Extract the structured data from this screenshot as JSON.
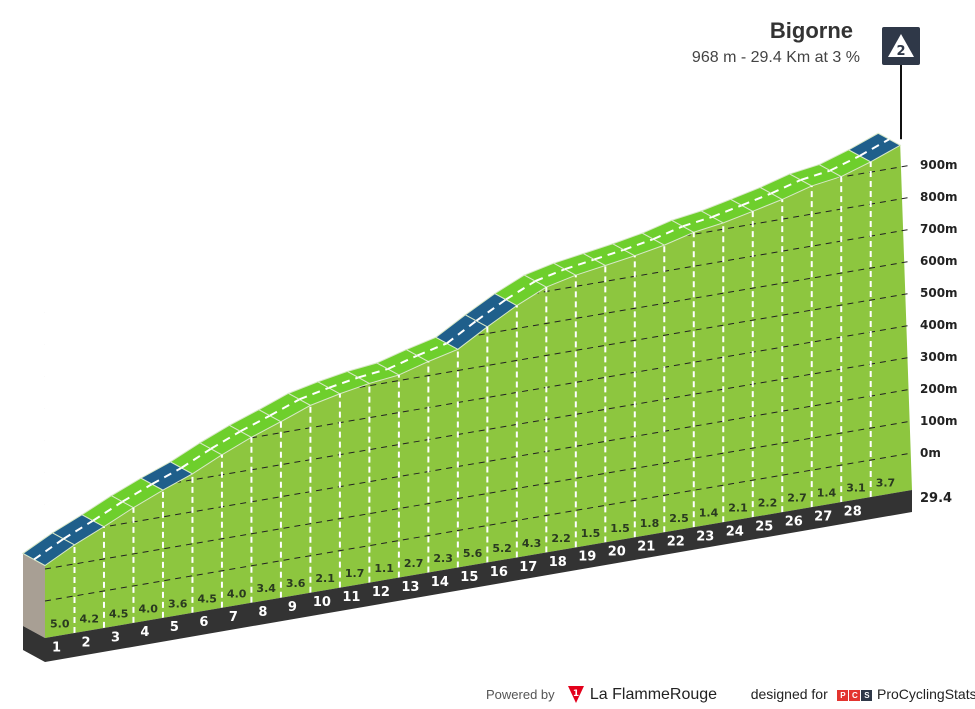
{
  "climb": {
    "name": "Bigorne",
    "summary": "968 m - 29.4 Km at 3 %",
    "category": "2"
  },
  "footer": {
    "powered_by": "Powered by",
    "brand": "La FlammeRouge",
    "brand_mark": "1",
    "designed_for": "designed for",
    "pcs_letters": [
      "P",
      "C",
      "S"
    ],
    "pcs_name": "ProCyclingStats"
  },
  "colors": {
    "green": "#8dc63f",
    "green_top": "#6ecf2c",
    "blue": "#1f5f8b",
    "dark": "#333333",
    "side": "#a89f94"
  },
  "chart_data": {
    "type": "area",
    "title": "Bigorne",
    "xlabel": "km",
    "ylabel": "m",
    "start_elevation": 111,
    "end_elevation": 968,
    "total_km": 29.4,
    "km_labels": [
      "1",
      "2",
      "3",
      "4",
      "5",
      "6",
      "7",
      "8",
      "9",
      "10",
      "11",
      "12",
      "13",
      "14",
      "15",
      "16",
      "17",
      "18",
      "19",
      "20",
      "21",
      "22",
      "23",
      "24",
      "25",
      "26",
      "27",
      "28"
    ],
    "end_label": "29.4",
    "gradients": [
      5.0,
      4.2,
      4.5,
      4.0,
      3.6,
      4.5,
      4.0,
      3.4,
      3.6,
      2.1,
      1.7,
      1.1,
      2.7,
      2.3,
      5.6,
      5.2,
      4.3,
      2.2,
      1.5,
      1.5,
      1.8,
      2.5,
      1.4,
      2.1,
      2.2,
      2.7,
      1.4,
      3.1,
      3.7
    ],
    "gradient_labels": [
      "5.0",
      "4.2",
      "4.5",
      "4.0",
      "3.6",
      "4.5",
      "4.0",
      "3.4",
      "3.6",
      "2.1",
      "1.7",
      "1.1",
      "2.7",
      "2.3",
      "5.6",
      "5.2",
      "4.3",
      "2.2",
      "1.5",
      "1.5",
      "1.8",
      "2.5",
      "1.4",
      "2.1",
      "2.2",
      "2.7",
      "1.4",
      "3.1",
      "3.7"
    ],
    "steep_segments": [
      0,
      1,
      4,
      14,
      15,
      28
    ],
    "y_ticks": [
      "0m",
      "100m",
      "200m",
      "300m",
      "400m",
      "500m",
      "600m",
      "700m",
      "800m",
      "900m"
    ],
    "y_tick_values": [
      0,
      100,
      200,
      300,
      400,
      500,
      600,
      700,
      800,
      900
    ]
  }
}
